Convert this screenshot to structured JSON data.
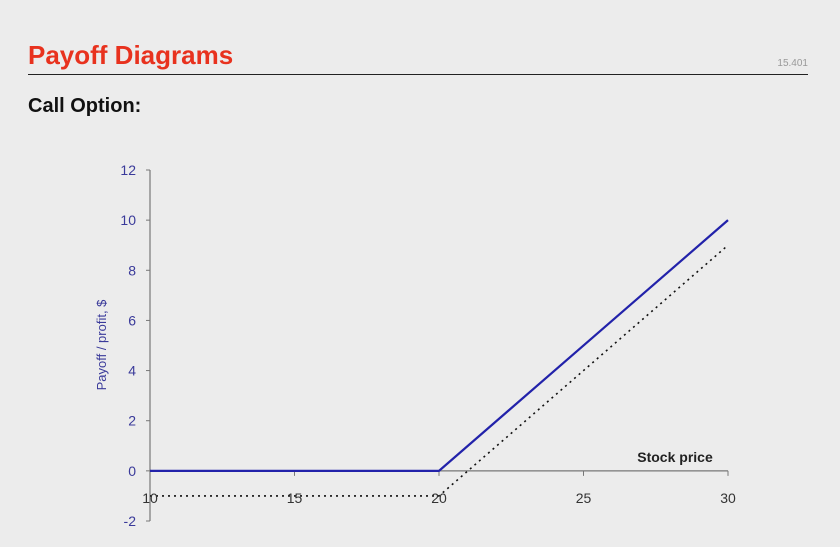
{
  "slide": {
    "title": "Payoff Diagrams",
    "course": "15.401",
    "subtitle": "Call Option:"
  },
  "colors": {
    "title": "#e8321e",
    "payoff_line": "#2222aa",
    "profit_line": "#111111",
    "axis_text": "#3a3a9a"
  },
  "chart_data": {
    "type": "line",
    "title": "",
    "xlabel": "Stock price",
    "ylabel": "Payoff / profit, $",
    "xlim": [
      10,
      30
    ],
    "ylim": [
      -2,
      12
    ],
    "xticks": [
      10,
      15,
      20,
      25,
      30
    ],
    "yticks": [
      -2,
      0,
      2,
      4,
      6,
      8,
      10,
      12
    ],
    "grid": false,
    "series": [
      {
        "style": "solid",
        "x": [
          10,
          20,
          30
        ],
        "y": [
          0,
          0,
          10
        ]
      },
      {
        "style": "dotted",
        "x": [
          10,
          20,
          21,
          30
        ],
        "y": [
          -1,
          -1,
          0,
          9
        ]
      }
    ]
  }
}
